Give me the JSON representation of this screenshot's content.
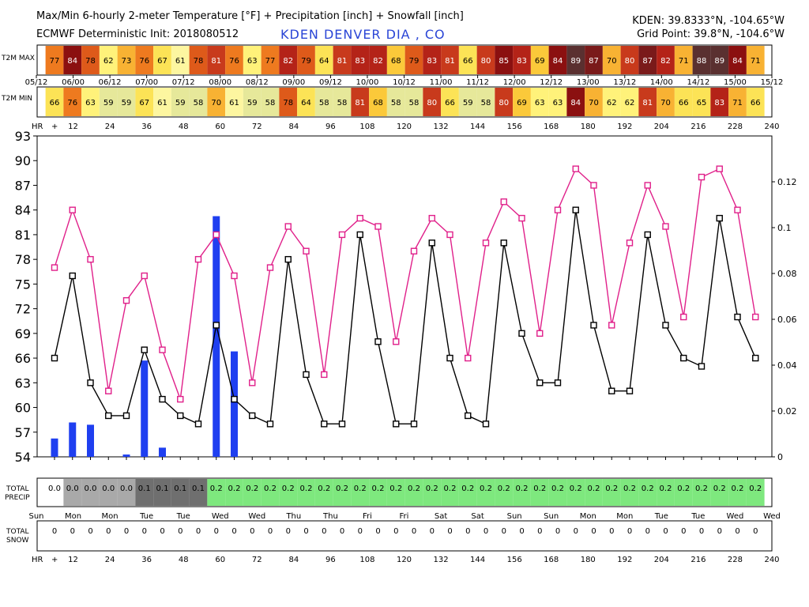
{
  "header": {
    "title": "Max/Min 6-hourly 2-meter Temperature [°F] + Precipitation [inch] + Snowfall [inch]",
    "init": "ECMWF Deterministic Init: 2018080512",
    "station": "KDEN DENVER DIA   , CO",
    "coords": "KDEN: 39.8333°N, -104.65°W",
    "grid": "Grid Point: 39.8°N, -104.6°W"
  },
  "rows": {
    "t2m_max_label": "T2M MAX",
    "t2m_min_label": "T2M MIN",
    "hr_label": "HR",
    "hr_plus": "+",
    "total_precip_label": [
      "TOTAL",
      "PRECIP"
    ],
    "total_snow_label": [
      "TOTAL",
      "SNOW"
    ]
  },
  "date_labels": [
    "05/12",
    "06/00",
    "06/12",
    "07/00",
    "07/12",
    "08/00",
    "08/12",
    "09/00",
    "09/12",
    "10/00",
    "10/12",
    "11/00",
    "11/12",
    "12/00",
    "12/12",
    "13/00",
    "13/12",
    "14/00",
    "14/12",
    "15/00",
    "15/12"
  ],
  "day_labels": [
    "Sun",
    "Mon",
    "Mon",
    "Tue",
    "Tue",
    "Wed",
    "Wed",
    "Thu",
    "Thu",
    "Fri",
    "Fri",
    "Sat",
    "Sat",
    "Sun",
    "Sun",
    "Mon",
    "Mon",
    "Tue",
    "Tue",
    "Wed",
    "Wed"
  ],
  "hour_labels": [
    "12",
    "24",
    "36",
    "48",
    "60",
    "72",
    "84",
    "96",
    "108",
    "120",
    "132",
    "144",
    "156",
    "168",
    "180",
    "192",
    "204",
    "216",
    "228",
    "240"
  ],
  "chart_data": {
    "type": "line",
    "title": "Max/Min 6-hourly 2-meter Temperature [°F] + Precipitation [inch] + Snowfall [inch]",
    "x_unit": "forecast hour",
    "x": [
      6,
      12,
      18,
      24,
      30,
      36,
      42,
      48,
      54,
      60,
      66,
      72,
      78,
      84,
      90,
      96,
      102,
      108,
      114,
      120,
      126,
      132,
      138,
      144,
      150,
      156,
      162,
      168,
      174,
      180,
      186,
      192,
      198,
      204,
      210,
      216,
      222,
      228,
      234,
      240
    ],
    "ylim": [
      54,
      93
    ],
    "yticks": [
      54,
      57,
      60,
      63,
      66,
      69,
      72,
      75,
      78,
      81,
      84,
      87,
      90,
      93
    ],
    "y2lim": [
      0,
      0.14
    ],
    "y2ticks": [
      0,
      0.02,
      0.04,
      0.06,
      0.08,
      0.1,
      0.12
    ],
    "y2tick_labels": [
      "0",
      "0.02",
      "0.04",
      "0.06",
      "0.08",
      "0.1",
      "0.12"
    ],
    "grid": false,
    "series": [
      {
        "name": "T2M MAX",
        "color": "#e0208a",
        "marker": "square",
        "values": [
          77,
          84,
          78,
          62,
          73,
          76,
          67,
          61,
          78,
          81,
          76,
          63,
          77,
          82,
          79,
          64,
          81,
          83,
          82,
          68,
          79,
          83,
          81,
          66,
          80,
          85,
          83,
          69,
          84,
          89,
          87,
          70,
          80,
          87,
          82,
          71,
          88,
          89,
          84,
          71
        ]
      },
      {
        "name": "T2M MIN",
        "color": "#000000",
        "marker": "square",
        "values": [
          66,
          76,
          63,
          59,
          59,
          67,
          61,
          59,
          58,
          70,
          61,
          59,
          58,
          78,
          64,
          58,
          58,
          81,
          68,
          58,
          58,
          80,
          66,
          59,
          58,
          80,
          69,
          63,
          63,
          84,
          70,
          62,
          62,
          81,
          70,
          66,
          65,
          83,
          71,
          66
        ]
      },
      {
        "name": "Precipitation",
        "type": "bar",
        "color": "#1f3ff0",
        "axis": "right",
        "values": [
          0.008,
          0.015,
          0.014,
          0,
          0.001,
          0.042,
          0.004,
          0,
          0,
          0.105,
          0.046,
          0,
          0,
          0,
          0,
          0,
          0,
          0,
          0,
          0,
          0,
          0,
          0,
          0,
          0,
          0,
          0,
          0,
          0,
          0,
          0,
          0,
          0,
          0,
          0,
          0,
          0,
          0,
          0,
          0
        ]
      }
    ]
  },
  "max_cells": [
    77,
    84,
    78,
    62,
    73,
    76,
    67,
    61,
    78,
    81,
    76,
    63,
    77,
    82,
    79,
    64,
    81,
    83,
    82,
    68,
    79,
    83,
    81,
    66,
    80,
    85,
    83,
    69,
    84,
    89,
    87,
    70,
    80,
    87,
    82,
    71,
    88,
    89,
    84,
    71
  ],
  "min_cells": [
    66,
    76,
    63,
    59,
    59,
    67,
    61,
    59,
    58,
    70,
    61,
    59,
    58,
    78,
    64,
    58,
    58,
    81,
    68,
    58,
    58,
    80,
    66,
    59,
    58,
    80,
    69,
    63,
    63,
    84,
    70,
    62,
    62,
    81,
    70,
    66,
    65,
    83,
    71,
    66
  ],
  "total_precip": [
    "0.0",
    "0.0",
    "0.0",
    "0.0",
    "0.0",
    "0.1",
    "0.1",
    "0.1",
    "0.1",
    "0.2",
    "0.2",
    "0.2",
    "0.2",
    "0.2",
    "0.2",
    "0.2",
    "0.2",
    "0.2",
    "0.2",
    "0.2",
    "0.2",
    "0.2",
    "0.2",
    "0.2",
    "0.2",
    "0.2",
    "0.2",
    "0.2",
    "0.2",
    "0.2",
    "0.2",
    "0.2",
    "0.2",
    "0.2",
    "0.2",
    "0.2",
    "0.2",
    "0.2",
    "0.2",
    "0.2"
  ],
  "total_snow": [
    "0",
    "0",
    "0",
    "0",
    "0",
    "0",
    "0",
    "0",
    "0",
    "0",
    "0",
    "0",
    "0",
    "0",
    "0",
    "0",
    "0",
    "0",
    "0",
    "0",
    "0",
    "0",
    "0",
    "0",
    "0",
    "0",
    "0",
    "0",
    "0",
    "0",
    "0",
    "0",
    "0",
    "0",
    "0",
    "0",
    "0",
    "0",
    "0",
    "0"
  ],
  "colors": {
    "max_line": "#e0208a",
    "min_line": "#000000",
    "precip_bar": "#1f3ff0",
    "precip_green": "#7ee87e"
  }
}
